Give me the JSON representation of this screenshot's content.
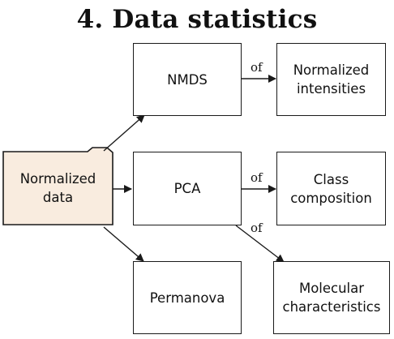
{
  "title": "4. Data statistics",
  "nodes": {
    "source": {
      "line1": "Normalized",
      "line2": "data"
    },
    "nmds": "NMDS",
    "pca": "PCA",
    "permanova": "Permanova",
    "normalized_intensities": {
      "line1": "Normalized",
      "line2": "intensities"
    },
    "class_composition": {
      "line1": "Class",
      "line2": "composition"
    },
    "molecular_characteristics": {
      "line1": "Molecular",
      "line2": "characteristics"
    }
  },
  "edge_labels": {
    "nmds_to_intensities": "of",
    "pca_to_class": "of",
    "pca_to_molecular": "of"
  },
  "colors": {
    "folder_fill": "#f9ecdf",
    "stroke": "#1a1a1a"
  }
}
